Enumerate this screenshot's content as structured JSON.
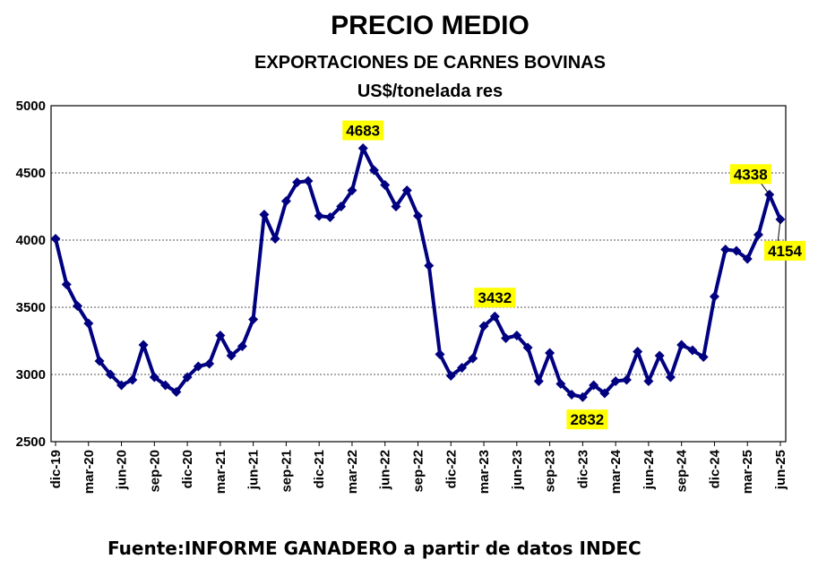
{
  "chart_data": {
    "type": "line",
    "title": "PRECIO MEDIO",
    "subtitle": "EXPORTACIONES DE CARNES BOVINAS",
    "ylabel": "US$/tonelada res",
    "source": "Fuente:INFORME GANADERO a partir de datos INDEC",
    "ylim": [
      2500,
      5000
    ],
    "yticks": [
      "2500",
      "3000",
      "3500",
      "4000",
      "4500",
      "5000"
    ],
    "x": [
      "dic-19",
      "ene-20",
      "feb-20",
      "mar-20",
      "abr-20",
      "may-20",
      "jun-20",
      "jul-20",
      "ago-20",
      "sep-20",
      "oct-20",
      "nov-20",
      "dic-20",
      "ene-21",
      "feb-21",
      "mar-21",
      "abr-21",
      "may-21",
      "jun-21",
      "jul-21",
      "ago-21",
      "sep-21",
      "oct-21",
      "nov-21",
      "dic-21",
      "ene-22",
      "feb-22",
      "mar-22",
      "abr-22",
      "may-22",
      "jun-22",
      "jul-22",
      "ago-22",
      "sep-22",
      "oct-22",
      "nov-22",
      "dic-22",
      "ene-23",
      "feb-23",
      "mar-23",
      "abr-23",
      "may-23",
      "jun-23",
      "jul-23",
      "ago-23",
      "sep-23",
      "oct-23",
      "nov-23",
      "dic-23",
      "ene-24",
      "feb-24",
      "mar-24",
      "abr-24",
      "may-24",
      "jun-24",
      "jul-24",
      "ago-24",
      "sep-24",
      "oct-24",
      "nov-24",
      "dic-24",
      "ene-25",
      "feb-25",
      "mar-25",
      "abr-25",
      "may-25",
      "jun-25"
    ],
    "xtick_labels": [
      "dic-19",
      "mar-20",
      "jun-20",
      "sep-20",
      "dic-20",
      "mar-21",
      "jun-21",
      "sep-21",
      "dic-21",
      "mar-22",
      "jun-22",
      "sep-22",
      "dic-22",
      "mar-23",
      "jun-23",
      "sep-23",
      "dic-23",
      "mar-24",
      "jun-24",
      "sep-24",
      "dic-24",
      "mar-25",
      "jun-25"
    ],
    "series": [
      {
        "color": "#000080",
        "values": [
          4010,
          3670,
          3510,
          3380,
          3100,
          3000,
          2920,
          2960,
          3220,
          2980,
          2920,
          2870,
          2980,
          3060,
          3080,
          3290,
          3140,
          3210,
          3410,
          4190,
          4010,
          4290,
          4430,
          4440,
          4180,
          4170,
          4250,
          4370,
          4683,
          4520,
          4410,
          4250,
          4370,
          4180,
          3810,
          3150,
          2990,
          3050,
          3120,
          3360,
          3432,
          3270,
          3290,
          3200,
          2950,
          3160,
          2930,
          2850,
          2832,
          2920,
          2860,
          2950,
          2960,
          3170,
          2950,
          3140,
          2980,
          3220,
          3180,
          3130,
          3580,
          3930,
          3920,
          3860,
          4040,
          4338,
          4154
        ]
      }
    ],
    "data_labels": [
      {
        "index": 28,
        "text": "4683"
      },
      {
        "index": 40,
        "text": "3432"
      },
      {
        "index": 48,
        "text": "2832"
      },
      {
        "index": 65,
        "text": "4338"
      },
      {
        "index": 66,
        "text": "4154"
      }
    ],
    "grid": true,
    "legend": "none"
  }
}
